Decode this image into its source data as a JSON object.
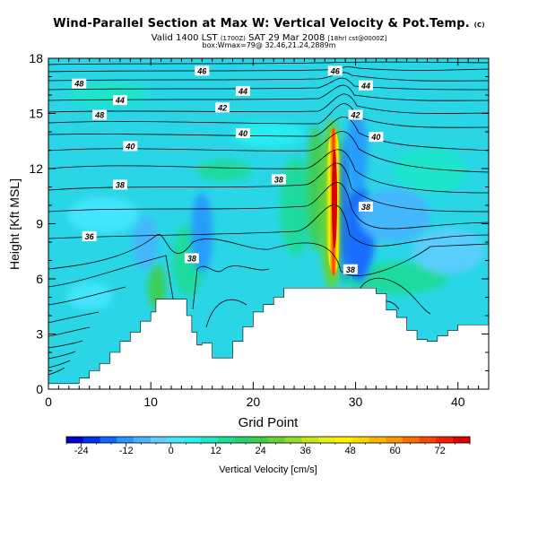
{
  "title": {
    "main": "Wind-Parallel Section at Max W: Vertical Velocity & Pot.Temp.",
    "main_tag": "(C)",
    "valid": "Valid 1400 LST",
    "valid_small1": "(1700Z)",
    "valid_date": "SAT 29 Mar 2008",
    "valid_small2": "[18hrl cst@0000Z]",
    "box_line": "box:Wmax=79@ 32.46,21.24,2889m"
  },
  "chart_data": {
    "type": "heatmap",
    "xlabel": "Grid Point",
    "ylabel": "Height [Kft MSL]",
    "xlim": [
      0,
      43
    ],
    "ylim": [
      0,
      18
    ],
    "x_ticks": [
      0,
      10,
      20,
      30,
      40
    ],
    "y_ticks": [
      0,
      3,
      6,
      9,
      12,
      15,
      18
    ],
    "terrain_profile": {
      "x": [
        0,
        2,
        3,
        4,
        5,
        6,
        7,
        8,
        9,
        10,
        10.5,
        11,
        13,
        13.5,
        14,
        14.5,
        15,
        16,
        17,
        18,
        19,
        20,
        21,
        22,
        23,
        24,
        25,
        26,
        27,
        28,
        29,
        30,
        31,
        32,
        33,
        34,
        35,
        36,
        37,
        38,
        39,
        40,
        41,
        42,
        43
      ],
      "height": [
        0.3,
        0.3,
        0.6,
        1.0,
        1.4,
        2.0,
        2.6,
        3.1,
        3.7,
        4.2,
        4.9,
        4.9,
        4.9,
        4.0,
        3.1,
        2.4,
        2.5,
        1.7,
        1.7,
        2.6,
        3.4,
        4.2,
        4.6,
        5.0,
        5.5,
        5.5,
        5.5,
        5.5,
        5.5,
        5.5,
        5.5,
        5.5,
        5.5,
        5.2,
        4.3,
        3.9,
        3.2,
        2.7,
        2.6,
        2.9,
        3.2,
        3.5,
        3.5,
        3.5,
        3.5
      ]
    },
    "contour_series": {
      "name": "Pot.Temp.",
      "labels": [
        {
          "value": "46",
          "x": 15,
          "y": 17.3
        },
        {
          "value": "46",
          "x": 28,
          "y": 17.3
        },
        {
          "value": "48",
          "x": 3,
          "y": 16.6
        },
        {
          "value": "44",
          "x": 19,
          "y": 16.2
        },
        {
          "value": "44",
          "x": 31,
          "y": 16.5
        },
        {
          "value": "44",
          "x": 7,
          "y": 15.7
        },
        {
          "value": "42",
          "x": 17,
          "y": 15.3
        },
        {
          "value": "48",
          "x": 5,
          "y": 14.9
        },
        {
          "value": "42",
          "x": 30,
          "y": 14.9
        },
        {
          "value": "40",
          "x": 19,
          "y": 13.9
        },
        {
          "value": "40",
          "x": 32,
          "y": 13.7
        },
        {
          "value": "40",
          "x": 8,
          "y": 13.2
        },
        {
          "value": "38",
          "x": 7,
          "y": 11.1
        },
        {
          "value": "38",
          "x": 22.5,
          "y": 11.4
        },
        {
          "value": "38",
          "x": 31,
          "y": 9.9
        },
        {
          "value": "36",
          "x": 4,
          "y": 8.3
        },
        {
          "value": "38",
          "x": 14,
          "y": 7.1
        },
        {
          "value": "38",
          "x": 29.5,
          "y": 6.5
        }
      ]
    },
    "colorbar": {
      "label": "Vertical Velocity [cm/s]",
      "ticks": [
        -24,
        -12,
        0,
        12,
        24,
        36,
        48,
        60,
        72
      ],
      "range": [
        -28,
        80
      ],
      "colors": [
        "#0000c8",
        "#0033ee",
        "#1464ff",
        "#2896ff",
        "#46b4ff",
        "#5fcdff",
        "#46e6ff",
        "#28f0f0",
        "#1ee6c8",
        "#1edc96",
        "#28d26e",
        "#3ccd46",
        "#69d232",
        "#96dc28",
        "#c3e619",
        "#e6f014",
        "#fff000",
        "#ffd700",
        "#ffb400",
        "#ff9600",
        "#ff6e00",
        "#ff4600",
        "#f51e00",
        "#dc0000"
      ]
    },
    "features": {
      "updraft_max_cm_s": 79,
      "updraft_location_x": 28,
      "updraft_core_height_kft": [
        6,
        14
      ]
    }
  }
}
